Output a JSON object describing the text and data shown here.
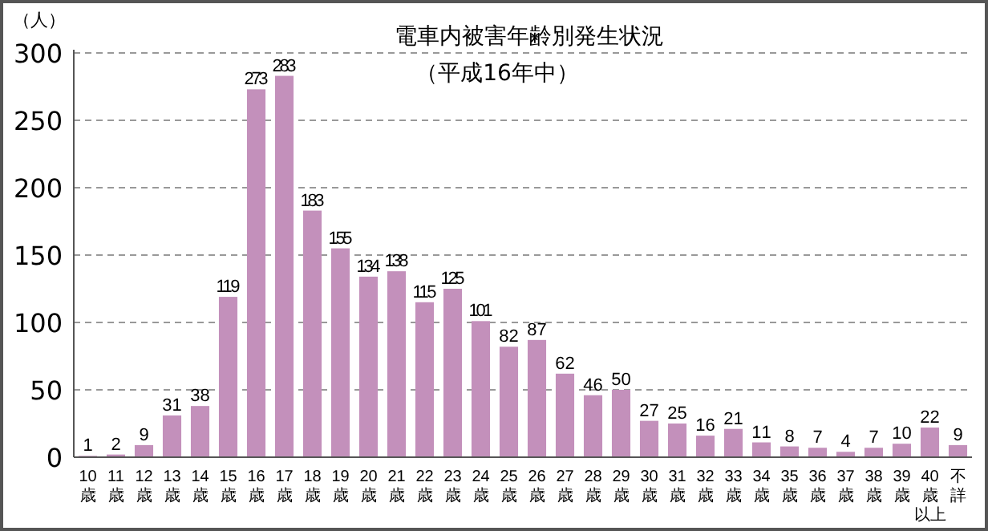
{
  "chart_data": {
    "type": "bar",
    "title": "電車内被害年齢別発生状況",
    "subtitle": "（平成16年中）",
    "ylabel": "（人）",
    "categories": [
      "10歳",
      "11歳",
      "12歳",
      "13歳",
      "14歳",
      "15歳",
      "16歳",
      "17歳",
      "18歳",
      "19歳",
      "20歳",
      "21歳",
      "22歳",
      "23歳",
      "24歳",
      "25歳",
      "26歳",
      "27歳",
      "28歳",
      "29歳",
      "30歳",
      "31歳",
      "32歳",
      "33歳",
      "34歳",
      "35歳",
      "36歳",
      "37歳",
      "38歳",
      "39歳",
      "40歳以上",
      "不詳"
    ],
    "values": [
      1,
      2,
      9,
      31,
      38,
      119,
      273,
      283,
      183,
      155,
      134,
      138,
      115,
      125,
      101,
      82,
      87,
      62,
      46,
      50,
      27,
      25,
      16,
      21,
      11,
      8,
      7,
      4,
      7,
      10,
      22,
      9
    ],
    "color": "#c390bb",
    "ylim": [
      0,
      300
    ],
    "yticks": [
      0,
      50,
      100,
      150,
      200,
      250,
      300
    ],
    "grid": "y",
    "data_labels": true
  }
}
